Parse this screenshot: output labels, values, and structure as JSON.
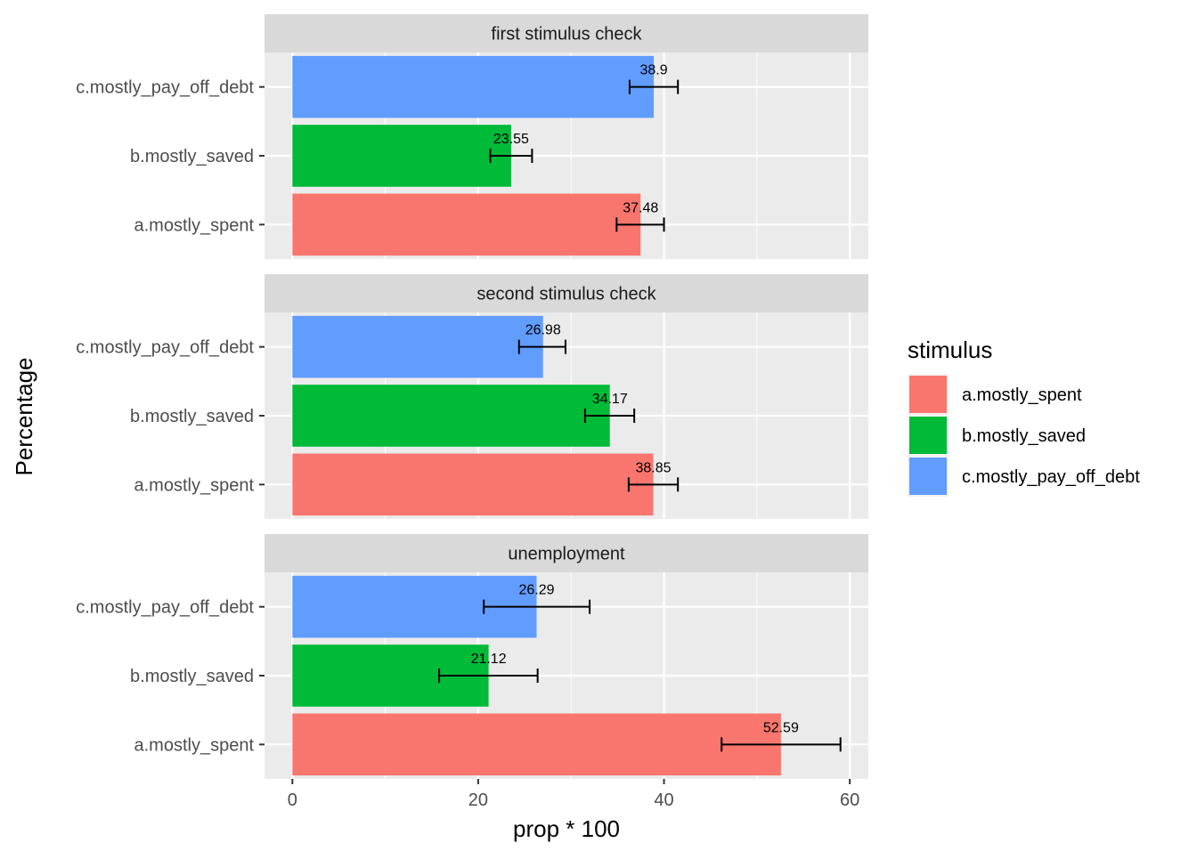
{
  "chart_data": {
    "type": "bar",
    "orientation": "horizontal",
    "faceted": true,
    "xlabel": "prop * 100",
    "ylabel": "Percentage",
    "xlim": [
      -3,
      62
    ],
    "x_ticks": [
      0,
      20,
      40,
      60
    ],
    "grid": true,
    "legend": {
      "title": "stimulus",
      "placement": "right",
      "entries": [
        {
          "label": "a.mostly_spent",
          "color": "#F8766D"
        },
        {
          "label": "b.mostly_saved",
          "color": "#00BA38"
        },
        {
          "label": "c.mostly_pay_off_debt",
          "color": "#619CFF"
        }
      ]
    },
    "categories": [
      "c.mostly_pay_off_debt",
      "b.mostly_saved",
      "a.mostly_spent"
    ],
    "colors": {
      "a.mostly_spent": "#F8766D",
      "b.mostly_saved": "#00BA38",
      "c.mostly_pay_off_debt": "#619CFF"
    },
    "panels": [
      {
        "title": "first stimulus check",
        "bars": [
          {
            "category": "c.mostly_pay_off_debt",
            "value": 38.9,
            "label": "38.9",
            "err_low": 36.3,
            "err_high": 41.5
          },
          {
            "category": "b.mostly_saved",
            "value": 23.55,
            "label": "23.55",
            "err_low": 21.3,
            "err_high": 25.8
          },
          {
            "category": "a.mostly_spent",
            "value": 37.48,
            "label": "37.48",
            "err_low": 34.9,
            "err_high": 40.0
          }
        ]
      },
      {
        "title": "second stimulus check",
        "bars": [
          {
            "category": "c.mostly_pay_off_debt",
            "value": 26.98,
            "label": "26.98",
            "err_low": 24.4,
            "err_high": 29.4
          },
          {
            "category": "b.mostly_saved",
            "value": 34.17,
            "label": "34.17",
            "err_low": 31.5,
            "err_high": 36.8
          },
          {
            "category": "a.mostly_spent",
            "value": 38.85,
            "label": "38.85",
            "err_low": 36.2,
            "err_high": 41.5
          }
        ]
      },
      {
        "title": "unemployment",
        "bars": [
          {
            "category": "c.mostly_pay_off_debt",
            "value": 26.29,
            "label": "26.29",
            "err_low": 20.6,
            "err_high": 32.0
          },
          {
            "category": "b.mostly_saved",
            "value": 21.12,
            "label": "21.12",
            "err_low": 15.8,
            "err_high": 26.4
          },
          {
            "category": "a.mostly_spent",
            "value": 52.59,
            "label": "52.59",
            "err_low": 46.2,
            "err_high": 59.0
          }
        ]
      }
    ]
  }
}
